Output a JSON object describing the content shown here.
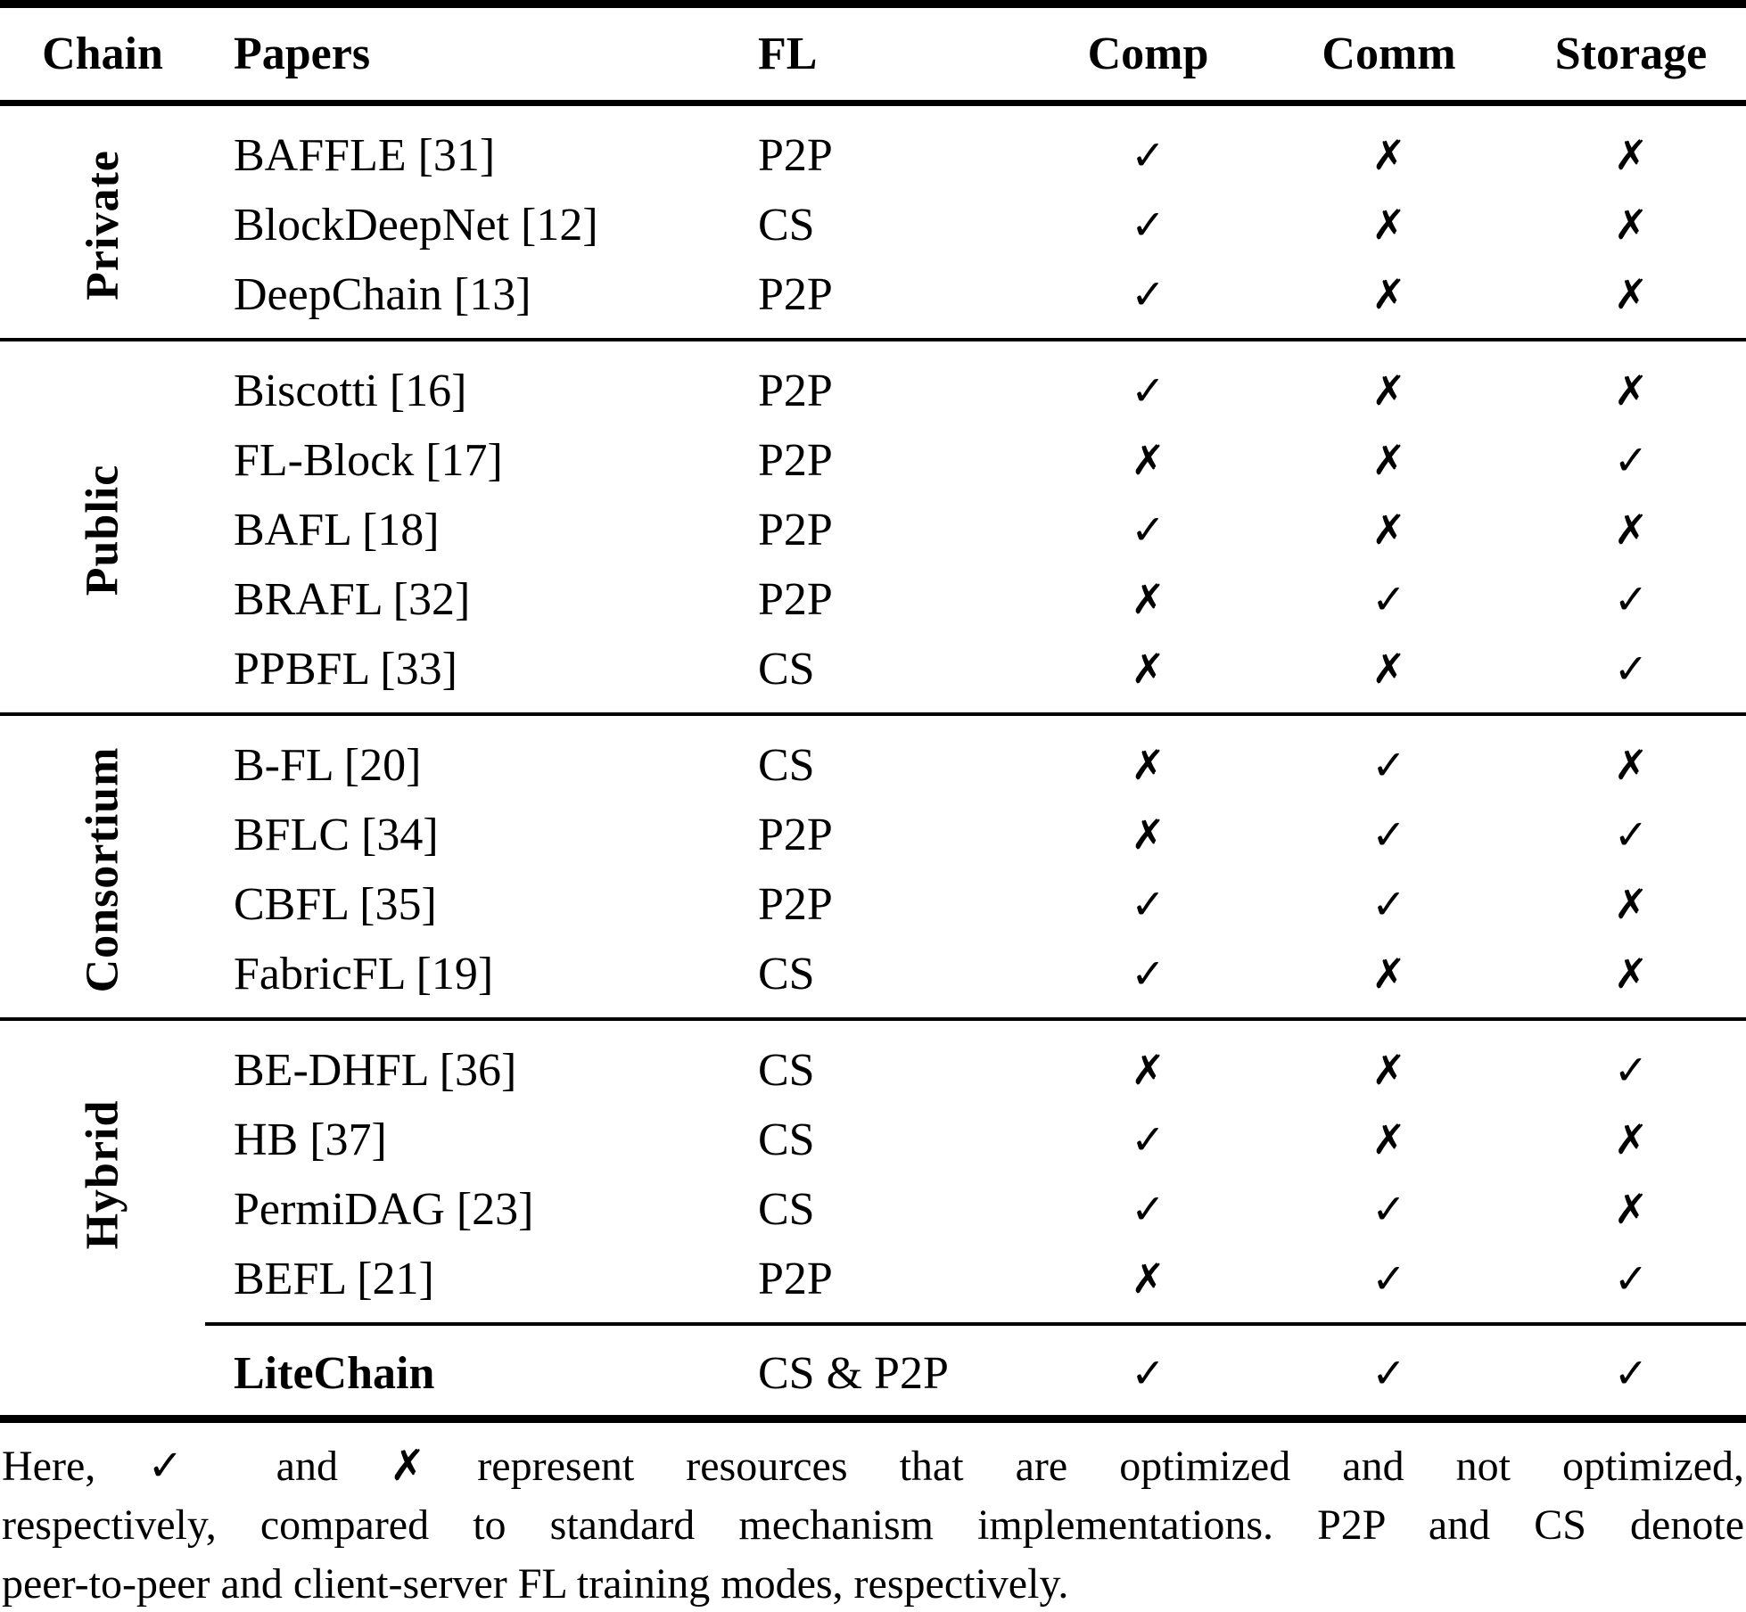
{
  "colors": {
    "text": "#000000",
    "background": "#ffffff",
    "rule": "#000000"
  },
  "legend": {
    "optimized_mark": "✓",
    "not_optimized_mark": "✗"
  },
  "table": {
    "columns": [
      "Chain",
      "Papers",
      "FL",
      "Comp",
      "Comm",
      "Storage"
    ],
    "sections": [
      {
        "chain": "Private",
        "rows": [
          {
            "paper": "BAFFLE [31]",
            "fl": "P2P",
            "comp": "✓",
            "comm": "✗",
            "storage": "✗"
          },
          {
            "paper": "BlockDeepNet [12]",
            "fl": "CS",
            "comp": "✓",
            "comm": "✗",
            "storage": "✗"
          },
          {
            "paper": "DeepChain [13]",
            "fl": "P2P",
            "comp": "✓",
            "comm": "✗",
            "storage": "✗"
          }
        ]
      },
      {
        "chain": "Public",
        "rows": [
          {
            "paper": "Biscotti [16]",
            "fl": "P2P",
            "comp": "✓",
            "comm": "✗",
            "storage": "✗"
          },
          {
            "paper": "FL-Block [17]",
            "fl": "P2P",
            "comp": "✗",
            "comm": "✗",
            "storage": "✓"
          },
          {
            "paper": "BAFL [18]",
            "fl": "P2P",
            "comp": "✓",
            "comm": "✗",
            "storage": "✗"
          },
          {
            "paper": "BRAFL [32]",
            "fl": "P2P",
            "comp": "✗",
            "comm": "✓",
            "storage": "✓"
          },
          {
            "paper": "PPBFL [33]",
            "fl": "CS",
            "comp": "✗",
            "comm": "✗",
            "storage": "✓"
          }
        ]
      },
      {
        "chain": "Consortium",
        "rows": [
          {
            "paper": "B-FL [20]",
            "fl": "CS",
            "comp": "✗",
            "comm": "✓",
            "storage": "✗"
          },
          {
            "paper": "BFLC [34]",
            "fl": "P2P",
            "comp": "✗",
            "comm": "✓",
            "storage": "✓"
          },
          {
            "paper": "CBFL [35]",
            "fl": "P2P",
            "comp": "✓",
            "comm": "✓",
            "storage": "✗"
          },
          {
            "paper": "FabricFL [19]",
            "fl": "CS",
            "comp": "✓",
            "comm": "✗",
            "storage": "✗"
          }
        ]
      },
      {
        "chain": "Hybrid",
        "rows": [
          {
            "paper": "BE-DHFL [36]",
            "fl": "CS",
            "comp": "✗",
            "comm": "✗",
            "storage": "✓"
          },
          {
            "paper": "HB [37]",
            "fl": "CS",
            "comp": "✓",
            "comm": "✗",
            "storage": "✗"
          },
          {
            "paper": "PermiDAG [23]",
            "fl": "CS",
            "comp": "✓",
            "comm": "✓",
            "storage": "✗"
          },
          {
            "paper": "BEFL [21]",
            "fl": "P2P",
            "comp": "✗",
            "comm": "✓",
            "storage": "✓"
          }
        ]
      }
    ],
    "highlight_row": {
      "paper": "LiteChain",
      "fl": "CS & P2P",
      "comp": "✓",
      "comm": "✓",
      "storage": "✓"
    }
  },
  "footnote": {
    "lines": [
      "Here, ✓ and ✗ represent resources that are optimized and not optimized,",
      "respectively, compared to standard mechanism implementations. P2P and CS denote",
      "peer-to-peer and client-server FL training modes, respectively."
    ]
  }
}
